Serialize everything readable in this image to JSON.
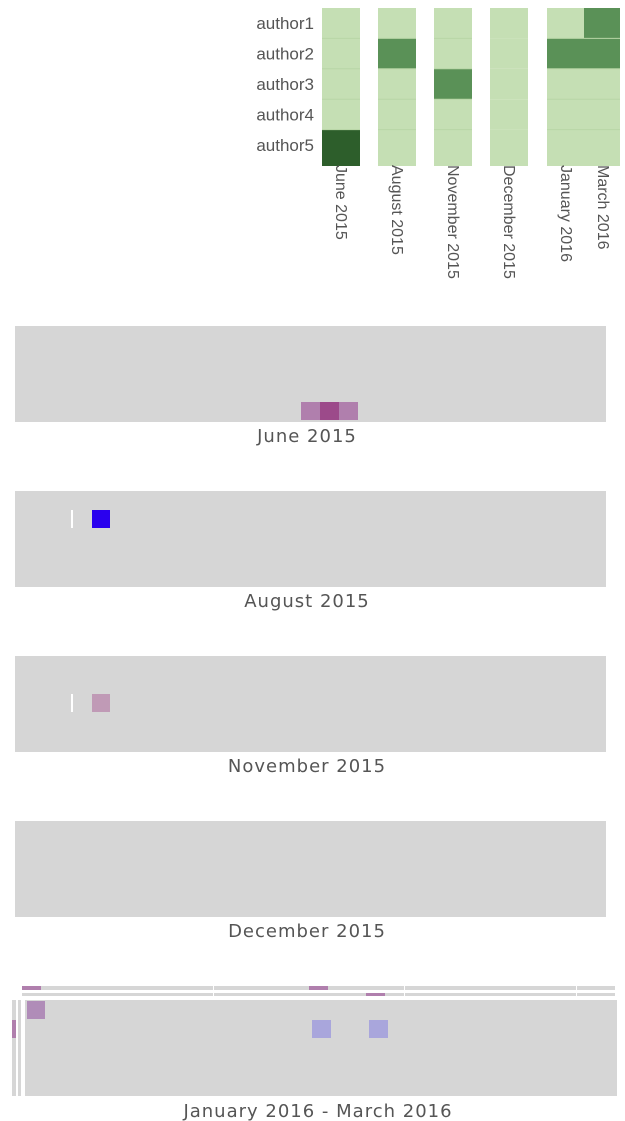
{
  "heatmap": {
    "rows": [
      "author1",
      "author2",
      "author3",
      "author4",
      "author5"
    ],
    "columns": [
      "June 2015",
      "August 2015",
      "November 2015",
      "December 2015",
      "January 2016",
      "March 2016"
    ],
    "levels": [
      [
        0,
        0,
        0,
        0,
        0,
        2
      ],
      [
        0,
        2,
        0,
        0,
        2,
        2
      ],
      [
        0,
        0,
        2,
        0,
        0,
        0
      ],
      [
        0,
        0,
        0,
        0,
        0,
        0
      ],
      [
        3,
        0,
        0,
        0,
        0,
        0
      ]
    ]
  },
  "panels": [
    {
      "label": "June 2015"
    },
    {
      "label": "August 2015"
    },
    {
      "label": "November 2015"
    },
    {
      "label": "December 2015"
    },
    {
      "label": "January 2016 - March 2016"
    }
  ]
}
